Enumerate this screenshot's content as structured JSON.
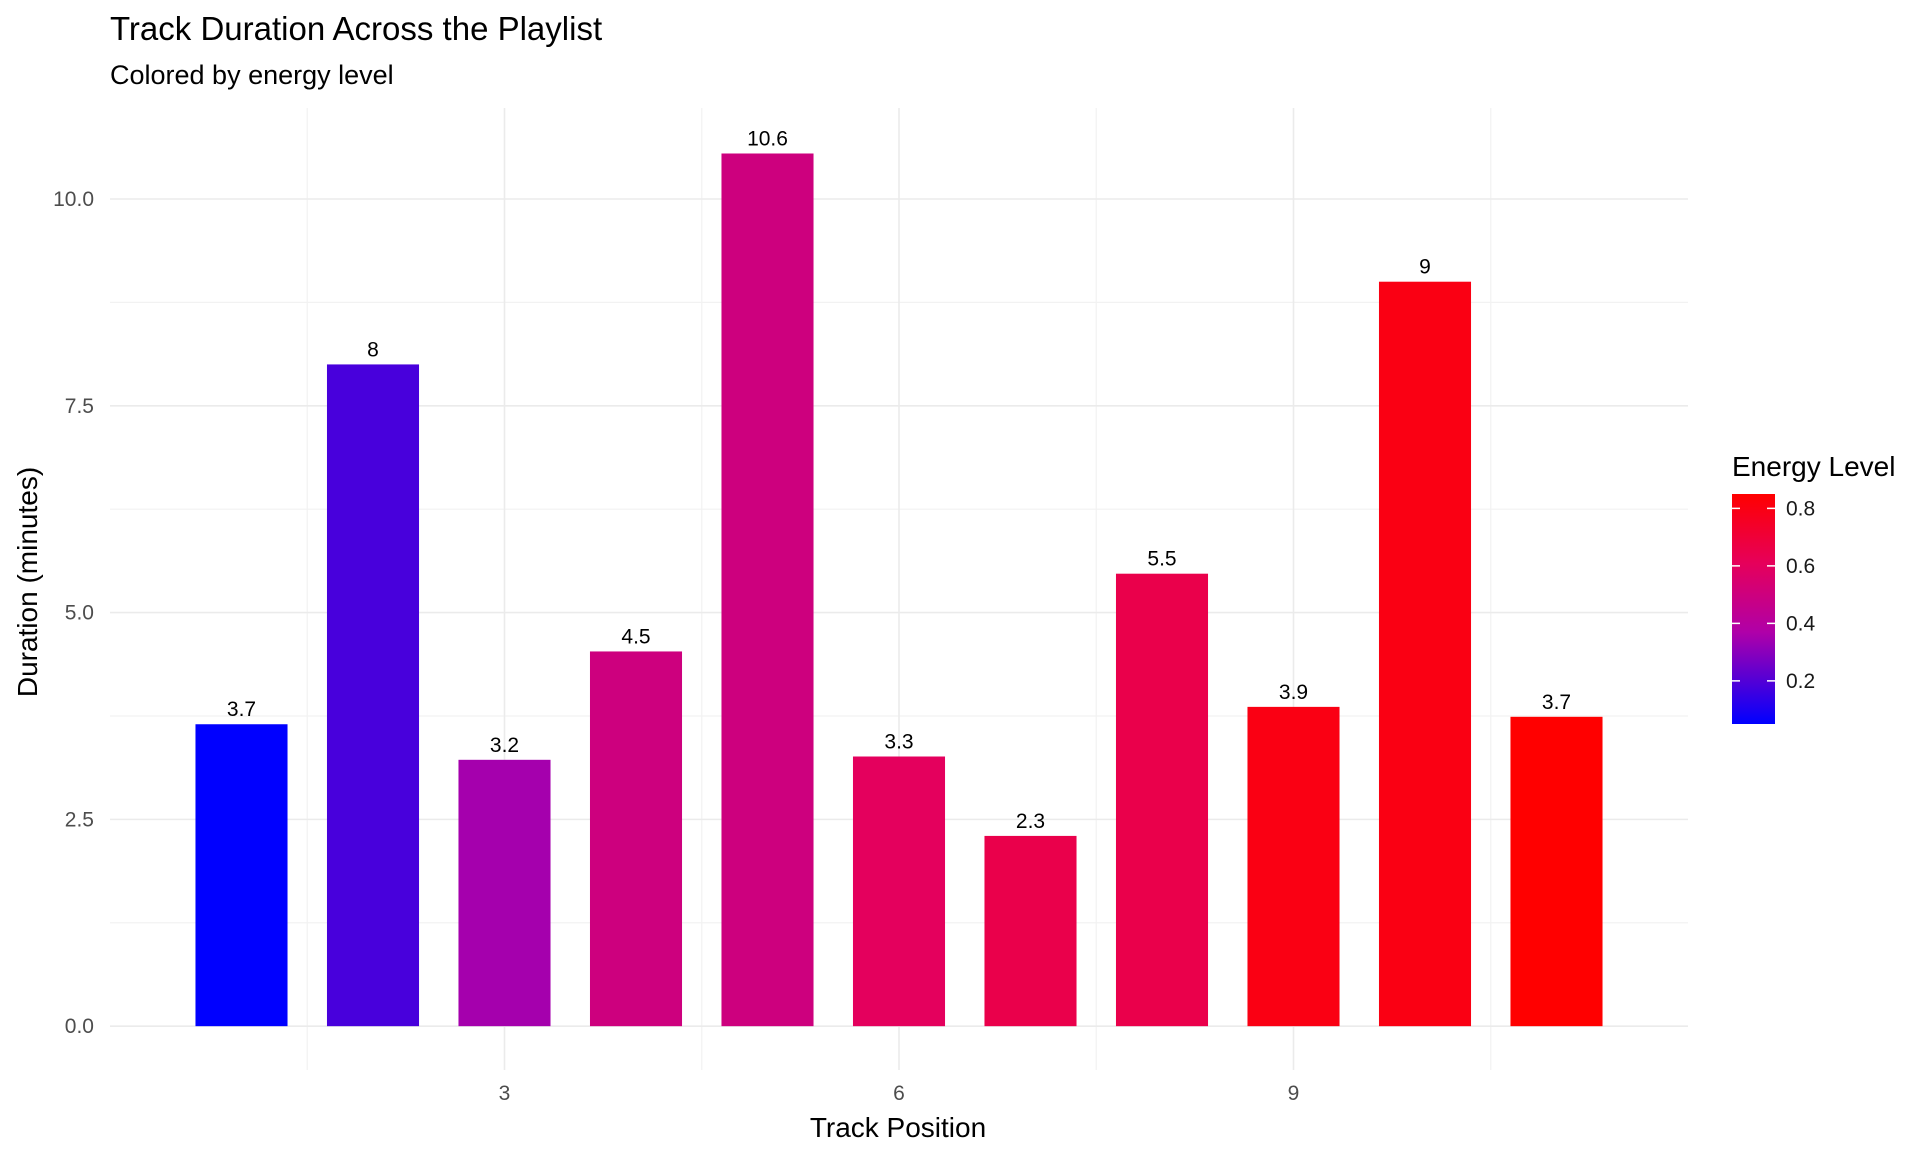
{
  "chart_data": {
    "type": "bar",
    "title": "Track Duration Across the Playlist",
    "subtitle": "Colored by energy level",
    "xlabel": "Track Position",
    "ylabel": "Duration (minutes)",
    "x": [
      1,
      2,
      3,
      4,
      5,
      6,
      7,
      8,
      9,
      10,
      11
    ],
    "values": [
      3.65,
      8.0,
      3.22,
      4.53,
      10.55,
      3.26,
      2.3,
      5.47,
      3.86,
      9.0,
      3.74
    ],
    "data_labels": [
      "3.7",
      "8",
      "3.2",
      "4.5",
      "10.6",
      "3.3",
      "2.3",
      "5.5",
      "3.9",
      "9",
      "3.7"
    ],
    "energy": [
      0.05,
      0.18,
      0.35,
      0.5,
      0.5,
      0.6,
      0.65,
      0.65,
      0.8,
      0.8,
      0.85
    ],
    "xlim": [
      -0.0,
      12.0
    ],
    "ylim": [
      -0.53,
      11.1
    ],
    "x_ticks": [
      3,
      6,
      9
    ],
    "x_tick_labels": [
      "3",
      "6",
      "9"
    ],
    "y_ticks": [
      0,
      2.5,
      5,
      7.5,
      10
    ],
    "y_tick_labels": [
      "0.0",
      "2.5",
      "5.0",
      "7.5",
      "10.0"
    ],
    "grid": true,
    "legend": {
      "title": "Energy Level",
      "placement": "right",
      "range": [
        0.05,
        0.85
      ],
      "ticks": [
        0.2,
        0.4,
        0.6,
        0.8
      ],
      "tick_labels": [
        "0.2",
        "0.4",
        "0.6",
        "0.8"
      ],
      "low_color": "#0000ff",
      "high_color": "#ff0000"
    }
  }
}
